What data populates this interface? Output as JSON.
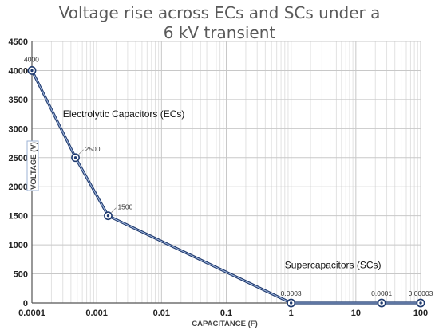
{
  "chart_data": {
    "type": "line",
    "title_lines": [
      "Voltage rise across ECs and SCs under a",
      "6 kV transient"
    ],
    "xlabel": "CAPACITANCE (F)",
    "ylabel": "VOLTAGE (V)",
    "xscale": "log",
    "xlim": [
      0.0001,
      100
    ],
    "ylim": [
      0,
      4500
    ],
    "x_tick_labels": [
      "0.0001",
      "0.001",
      "0.01",
      "0.1",
      "1",
      "10",
      "100"
    ],
    "x_ticks": [
      0.0001,
      0.001,
      0.01,
      0.1,
      1,
      10,
      100
    ],
    "y_ticks": [
      0,
      500,
      1000,
      1500,
      2000,
      2500,
      3000,
      3500,
      4000,
      4500
    ],
    "grid": true,
    "series": [
      {
        "color": "#1f3a6e",
        "x": [
          0.0001,
          0.00047,
          0.0015,
          1,
          25,
          100
        ],
        "y": [
          4000,
          2500,
          1500,
          0.0003,
          0.0001,
          3e-05
        ],
        "data_labels": [
          "4000",
          "2500",
          "1500",
          "0.0003",
          "0.0001",
          "0.00003"
        ]
      }
    ],
    "annotations": [
      {
        "text": "Electrolytic Capacitors (ECs)",
        "x": 0.0003,
        "y": 3200
      },
      {
        "text": "Supercapacitors (SCs)",
        "x": 0.8,
        "y": 600
      }
    ]
  }
}
